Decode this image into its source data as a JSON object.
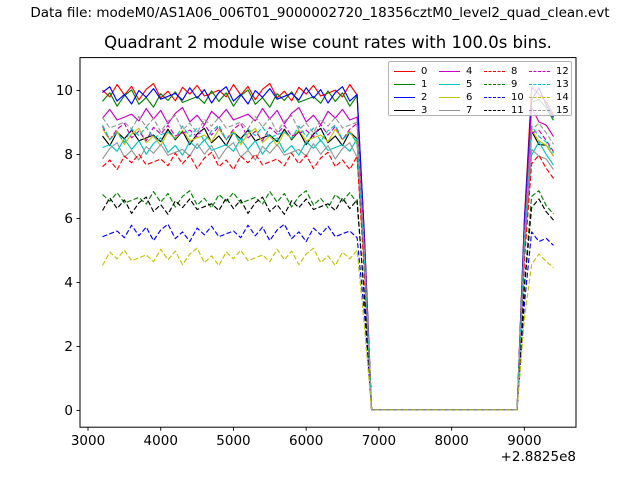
{
  "header": {
    "datafile_label": "Data file: modeM0/AS1A06_006T01_9000002720_18356cztM0_level2_quad_clean.evt"
  },
  "chart_data": {
    "type": "line",
    "title": "Quadrant 2 module wise count rates with 100.0s bins.",
    "xlabel": "",
    "ylabel": "",
    "x_offset_label": "+2.8825e8",
    "xlim": [
      2890,
      9710
    ],
    "ylim": [
      -0.525,
      11.03
    ],
    "xticks": [
      3000,
      4000,
      5000,
      6000,
      7000,
      8000,
      9000
    ],
    "yticks": [
      0,
      2,
      4,
      6,
      8,
      10
    ],
    "grid": false,
    "legend_position": "upper right",
    "legend_columns": 4,
    "bin_seconds": 100.0,
    "x": [
      3200,
      3300,
      3400,
      3500,
      3600,
      3700,
      3800,
      3900,
      4000,
      4100,
      4200,
      4300,
      4400,
      4500,
      4600,
      4700,
      4800,
      4900,
      5000,
      5100,
      5200,
      5300,
      5400,
      5500,
      5600,
      5700,
      5800,
      5900,
      6000,
      6100,
      6200,
      6300,
      6400,
      6500,
      6600,
      6700,
      6800,
      6900,
      7000,
      7100,
      7200,
      7300,
      7400,
      7500,
      7600,
      7700,
      7800,
      7900,
      8000,
      8100,
      8200,
      8300,
      8400,
      8500,
      8600,
      8700,
      8800,
      8900,
      9000,
      9100,
      9200,
      9300,
      9400
    ],
    "series": [
      {
        "name": "0",
        "color": "#ff0000",
        "dashed": false,
        "y": [
          10.01,
          9.8,
          10.19,
          9.86,
          10.13,
          9.71,
          10.04,
          10.22,
          9.77,
          9.98,
          9.68,
          10.1,
          9.89,
          10.16,
          9.83,
          9.92,
          10.01,
          9.8,
          10.19,
          9.86,
          10.13,
          9.71,
          10.04,
          10.22,
          9.77,
          9.98,
          9.68,
          10.1,
          9.89,
          10.16,
          9.83,
          9.92,
          10.01,
          9.8,
          10.19,
          9.86,
          5.47,
          0.02,
          0.02,
          0.02,
          0.02,
          0.02,
          0.02,
          0.02,
          0.02,
          0.02,
          0.02,
          0.02,
          0.02,
          0.02,
          0.02,
          0.02,
          0.02,
          0.02,
          0.02,
          0.02,
          0.02,
          0.02,
          5.97,
          10.1,
          9.89,
          9.65,
          9.25
        ]
      },
      {
        "name": "1",
        "color": "#008000",
        "dashed": false,
        "y": [
          9.66,
          9.93,
          9.51,
          9.84,
          10.02,
          9.57,
          9.78,
          9.48,
          9.9,
          9.69,
          9.96,
          9.63,
          9.72,
          9.81,
          9.6,
          9.99,
          9.66,
          9.93,
          9.51,
          9.84,
          10.02,
          9.57,
          9.78,
          9.48,
          9.9,
          9.69,
          9.96,
          9.63,
          9.72,
          9.81,
          9.6,
          9.99,
          9.66,
          9.93,
          9.51,
          9.84,
          5.36,
          0.02,
          0.02,
          0.02,
          0.02,
          0.02,
          0.02,
          0.02,
          0.02,
          0.02,
          0.02,
          0.02,
          0.02,
          0.02,
          0.02,
          0.02,
          0.02,
          0.02,
          0.02,
          0.02,
          0.02,
          0.02,
          5.85,
          9.63,
          9.72,
          9.46,
          9.07
        ]
      },
      {
        "name": "2",
        "color": "#0000ff",
        "dashed": false,
        "y": [
          9.94,
          10.12,
          9.67,
          9.88,
          9.58,
          10.0,
          9.79,
          10.06,
          9.73,
          9.82,
          9.91,
          9.7,
          10.09,
          9.76,
          10.03,
          9.61,
          9.94,
          10.12,
          9.67,
          9.88,
          9.58,
          10.0,
          9.79,
          10.06,
          9.73,
          9.82,
          9.91,
          9.7,
          10.09,
          9.76,
          10.03,
          9.61,
          9.94,
          10.12,
          9.67,
          9.88,
          5.42,
          0.02,
          0.02,
          0.02,
          0.02,
          0.02,
          0.02,
          0.02,
          0.02,
          0.02,
          0.02,
          0.02,
          0.02,
          0.02,
          0.02,
          0.02,
          0.02,
          0.02,
          0.02,
          0.02,
          0.02,
          0.02,
          5.91,
          9.7,
          10.09,
          9.55,
          9.16
        ]
      },
      {
        "name": "3",
        "color": "#000000",
        "dashed": false,
        "y": [
          8.58,
          8.28,
          8.7,
          8.49,
          8.76,
          8.43,
          8.52,
          8.61,
          8.4,
          8.79,
          8.46,
          8.73,
          8.31,
          8.64,
          8.82,
          8.37,
          8.58,
          8.28,
          8.7,
          8.49,
          8.76,
          8.43,
          8.52,
          8.61,
          8.4,
          8.79,
          8.46,
          8.73,
          8.31,
          8.64,
          8.82,
          8.37,
          8.58,
          8.28,
          8.7,
          8.49,
          4.7,
          0.02,
          0.02,
          0.02,
          0.02,
          0.02,
          0.02,
          0.02,
          0.02,
          0.02,
          0.02,
          0.02,
          0.02,
          0.02,
          0.02,
          0.02,
          0.02,
          0.02,
          0.02,
          0.02,
          0.02,
          0.02,
          5.13,
          8.73,
          8.31,
          8.29,
          7.95
        ]
      },
      {
        "name": "4",
        "color": "#c800c8",
        "dashed": false,
        "y": [
          9.14,
          9.41,
          9.08,
          9.17,
          9.26,
          9.05,
          9.44,
          9.11,
          9.38,
          8.96,
          9.29,
          9.47,
          9.02,
          9.23,
          8.93,
          9.35,
          9.14,
          9.41,
          9.08,
          9.17,
          9.26,
          9.05,
          9.44,
          9.11,
          9.38,
          8.96,
          9.29,
          9.47,
          9.02,
          9.23,
          8.93,
          9.35,
          9.14,
          9.41,
          9.08,
          9.17,
          5.06,
          0.02,
          0.02,
          0.02,
          0.02,
          0.02,
          0.02,
          0.02,
          0.02,
          0.02,
          0.02,
          0.02,
          0.02,
          0.02,
          0.02,
          0.02,
          0.02,
          0.02,
          0.02,
          0.02,
          0.02,
          0.02,
          5.52,
          9.47,
          9.02,
          8.92,
          8.56
        ]
      },
      {
        "name": "5",
        "color": "#00c3c3",
        "dashed": false,
        "y": [
          8.22,
          8.31,
          8.1,
          8.49,
          8.16,
          8.43,
          8.01,
          8.34,
          8.52,
          8.07,
          8.28,
          7.98,
          8.4,
          8.19,
          8.46,
          8.13,
          8.22,
          8.31,
          8.1,
          8.49,
          8.16,
          8.43,
          8.01,
          8.34,
          8.52,
          8.07,
          8.28,
          7.98,
          8.4,
          8.19,
          8.46,
          8.13,
          8.22,
          8.31,
          8.1,
          8.49,
          4.54,
          0.02,
          0.02,
          0.02,
          0.02,
          0.02,
          0.02,
          0.02,
          0.02,
          0.02,
          0.02,
          0.02,
          0.02,
          0.02,
          0.02,
          0.02,
          0.02,
          0.02,
          0.02,
          0.02,
          0.02,
          0.02,
          4.95,
          7.98,
          8.4,
          8.0,
          7.67
        ]
      },
      {
        "name": "6",
        "color": "#c3c300",
        "dashed": false,
        "y": [
          8.79,
          8.46,
          8.73,
          8.31,
          8.64,
          8.82,
          8.37,
          8.58,
          8.28,
          8.7,
          8.49,
          8.76,
          8.43,
          8.52,
          8.61,
          8.4,
          8.79,
          8.46,
          8.73,
          8.31,
          8.64,
          8.82,
          8.37,
          8.58,
          8.28,
          8.7,
          8.49,
          8.76,
          8.43,
          8.52,
          8.61,
          8.4,
          8.79,
          8.46,
          8.73,
          8.31,
          4.7,
          0.02,
          0.02,
          0.02,
          0.02,
          0.02,
          0.02,
          0.02,
          0.02,
          0.02,
          0.02,
          0.02,
          0.02,
          0.02,
          0.02,
          0.02,
          0.02,
          0.02,
          0.02,
          0.02,
          0.02,
          0.02,
          5.13,
          8.76,
          8.43,
          8.29,
          7.95
        ]
      },
      {
        "name": "7",
        "color": "#969696",
        "dashed": false,
        "y": [
          7.86,
          8.19,
          8.37,
          7.92,
          8.13,
          7.83,
          8.25,
          8.04,
          8.31,
          7.98,
          8.07,
          8.16,
          7.95,
          8.34,
          8.01,
          8.28,
          7.86,
          8.19,
          8.37,
          7.92,
          8.13,
          7.83,
          8.25,
          8.04,
          8.31,
          7.98,
          8.07,
          8.16,
          7.95,
          8.34,
          8.01,
          8.28,
          7.86,
          8.19,
          8.37,
          7.92,
          4.46,
          0.02,
          0.02,
          0.02,
          0.02,
          0.02,
          0.02,
          0.02,
          0.02,
          0.02,
          0.02,
          0.02,
          0.02,
          0.02,
          0.02,
          0.02,
          0.02,
          0.02,
          0.02,
          0.02,
          0.02,
          0.02,
          4.86,
          8.16,
          7.95,
          7.86,
          7.53
        ]
      },
      {
        "name": "8",
        "color": "#ff0000",
        "dashed": true,
        "y": [
          7.62,
          7.83,
          7.53,
          7.95,
          7.74,
          8.01,
          7.68,
          7.77,
          7.86,
          7.65,
          8.04,
          7.71,
          7.98,
          7.56,
          7.89,
          8.07,
          7.62,
          7.83,
          7.53,
          7.95,
          7.74,
          8.01,
          7.68,
          7.77,
          7.86,
          7.65,
          8.04,
          7.71,
          7.98,
          7.56,
          7.89,
          8.07,
          7.62,
          7.83,
          7.53,
          7.95,
          4.29,
          0.02,
          0.02,
          0.02,
          0.02,
          0.02,
          0.02,
          0.02,
          0.02,
          0.02,
          0.02,
          0.02,
          0.02,
          0.02,
          0.02,
          0.02,
          0.02,
          0.02,
          0.02,
          0.02,
          0.02,
          0.02,
          4.68,
          7.71,
          7.98,
          7.57,
          7.25
        ]
      },
      {
        "name": "9",
        "color": "#008000",
        "dashed": true,
        "y": [
          6.75,
          6.54,
          6.81,
          6.48,
          6.57,
          6.66,
          6.45,
          6.84,
          6.51,
          6.78,
          6.36,
          6.69,
          6.87,
          6.42,
          6.63,
          6.33,
          6.75,
          6.54,
          6.81,
          6.48,
          6.57,
          6.66,
          6.45,
          6.84,
          6.51,
          6.78,
          6.36,
          6.69,
          6.87,
          6.42,
          6.63,
          6.33,
          6.75,
          6.54,
          6.81,
          6.48,
          3.63,
          0.02,
          0.02,
          0.02,
          0.02,
          0.02,
          0.02,
          0.02,
          0.02,
          0.02,
          0.02,
          0.02,
          0.02,
          0.02,
          0.02,
          0.02,
          0.02,
          0.02,
          0.02,
          0.02,
          0.02,
          0.02,
          3.96,
          6.69,
          6.87,
          6.4,
          6.14
        ]
      },
      {
        "name": "10",
        "color": "#0000ff",
        "dashed": true,
        "y": [
          5.43,
          5.52,
          5.61,
          5.4,
          5.79,
          5.46,
          5.73,
          5.31,
          5.64,
          5.82,
          5.37,
          5.58,
          5.28,
          5.7,
          5.49,
          5.76,
          5.43,
          5.52,
          5.61,
          5.4,
          5.79,
          5.46,
          5.73,
          5.31,
          5.64,
          5.82,
          5.37,
          5.58,
          5.28,
          5.7,
          5.49,
          5.76,
          5.43,
          5.52,
          5.61,
          5.4,
          3.05,
          0.02,
          0.02,
          0.02,
          0.02,
          0.02,
          0.02,
          0.02,
          0.02,
          0.02,
          0.02,
          0.02,
          0.02,
          0.02,
          0.02,
          0.02,
          0.02,
          0.02,
          0.02,
          0.02,
          0.02,
          0.02,
          3.33,
          5.58,
          5.28,
          5.38,
          5.16
        ]
      },
      {
        "name": "11",
        "color": "#000000",
        "dashed": true,
        "y": [
          6.25,
          6.64,
          6.31,
          6.58,
          6.16,
          6.49,
          6.67,
          6.22,
          6.43,
          6.13,
          6.55,
          6.34,
          6.61,
          6.28,
          6.37,
          6.46,
          6.25,
          6.64,
          6.31,
          6.58,
          6.16,
          6.49,
          6.67,
          6.22,
          6.43,
          6.13,
          6.55,
          6.34,
          6.61,
          6.28,
          6.37,
          6.46,
          6.25,
          6.64,
          6.31,
          6.58,
          3.52,
          0.02,
          0.02,
          0.02,
          0.02,
          0.02,
          0.02,
          0.02,
          0.02,
          0.02,
          0.02,
          0.02,
          0.02,
          0.02,
          0.02,
          0.02,
          0.02,
          0.02,
          0.02,
          0.02,
          0.02,
          0.02,
          3.84,
          6.34,
          6.61,
          6.21,
          5.95
        ]
      },
      {
        "name": "12",
        "color": "#c800c8",
        "dashed": true,
        "y": [
          8.88,
          8.46,
          8.79,
          8.97,
          8.52,
          8.73,
          8.43,
          8.85,
          8.64,
          8.91,
          8.58,
          8.67,
          8.76,
          8.55,
          8.94,
          8.61,
          8.88,
          8.46,
          8.79,
          8.97,
          8.52,
          8.73,
          8.43,
          8.85,
          8.64,
          8.91,
          8.58,
          8.67,
          8.76,
          8.55,
          8.94,
          8.61,
          8.88,
          8.46,
          8.79,
          8.97,
          4.79,
          0.02,
          0.02,
          0.02,
          0.02,
          0.02,
          0.02,
          0.02,
          0.02,
          0.02,
          0.02,
          0.02,
          0.02,
          0.02,
          0.02,
          0.02,
          0.02,
          0.02,
          0.02,
          0.02,
          0.02,
          0.02,
          5.22,
          8.67,
          8.76,
          8.44,
          8.09
        ]
      },
      {
        "name": "13",
        "color": "#00c3c3",
        "dashed": true,
        "y": [
          8.92,
          8.47,
          8.68,
          8.38,
          8.8,
          8.59,
          8.86,
          8.53,
          8.62,
          8.71,
          8.5,
          8.89,
          8.56,
          8.83,
          8.41,
          8.74,
          8.92,
          8.47,
          8.68,
          8.38,
          8.8,
          8.59,
          8.86,
          8.53,
          8.62,
          8.71,
          8.5,
          8.89,
          8.56,
          8.83,
          8.41,
          8.74,
          8.92,
          8.47,
          8.68,
          8.38,
          4.76,
          0.02,
          0.02,
          0.02,
          0.02,
          0.02,
          0.02,
          0.02,
          0.02,
          0.02,
          0.02,
          0.02,
          0.02,
          0.02,
          0.02,
          0.02,
          0.02,
          0.02,
          0.02,
          0.02,
          0.02,
          0.02,
          5.19,
          8.89,
          8.56,
          8.39,
          8.04
        ]
      },
      {
        "name": "14",
        "color": "#c3c300",
        "dashed": true,
        "y": [
          4.53,
          4.95,
          4.74,
          5.01,
          4.68,
          4.77,
          4.86,
          4.65,
          5.04,
          4.71,
          4.98,
          4.56,
          4.89,
          5.07,
          4.62,
          4.83,
          4.53,
          4.95,
          4.74,
          5.01,
          4.68,
          4.77,
          4.86,
          4.65,
          5.04,
          4.71,
          4.98,
          4.56,
          4.89,
          5.07,
          4.62,
          4.83,
          4.53,
          4.95,
          4.74,
          5.01,
          2.64,
          0.02,
          0.02,
          0.02,
          0.02,
          0.02,
          0.02,
          0.02,
          0.02,
          0.02,
          0.02,
          0.02,
          0.02,
          0.02,
          0.02,
          0.02,
          0.02,
          0.02,
          0.02,
          0.02,
          0.02,
          0.02,
          2.88,
          4.56,
          4.89,
          4.66,
          4.46
        ]
      },
      {
        "name": "15",
        "color": "#969696",
        "dashed": true,
        "y": [
          9.16,
          8.83,
          8.92,
          9.01,
          8.8,
          9.19,
          8.86,
          9.13,
          8.71,
          9.04,
          9.22,
          8.77,
          8.98,
          8.68,
          9.1,
          8.89,
          9.16,
          8.83,
          8.92,
          9.01,
          8.8,
          9.19,
          8.86,
          9.13,
          8.71,
          9.04,
          9.22,
          8.77,
          8.98,
          8.68,
          9.1,
          8.89,
          9.16,
          8.83,
          8.92,
          9.01,
          4.92,
          0.02,
          0.02,
          0.02,
          0.02,
          0.02,
          0.02,
          0.02,
          0.02,
          0.02,
          0.02,
          0.02,
          0.02,
          0.02,
          0.02,
          0.02,
          0.02,
          0.02,
          0.02,
          0.02,
          0.02,
          0.02,
          5.37,
          8.77,
          8.98,
          8.68,
          8.32
        ]
      }
    ]
  }
}
